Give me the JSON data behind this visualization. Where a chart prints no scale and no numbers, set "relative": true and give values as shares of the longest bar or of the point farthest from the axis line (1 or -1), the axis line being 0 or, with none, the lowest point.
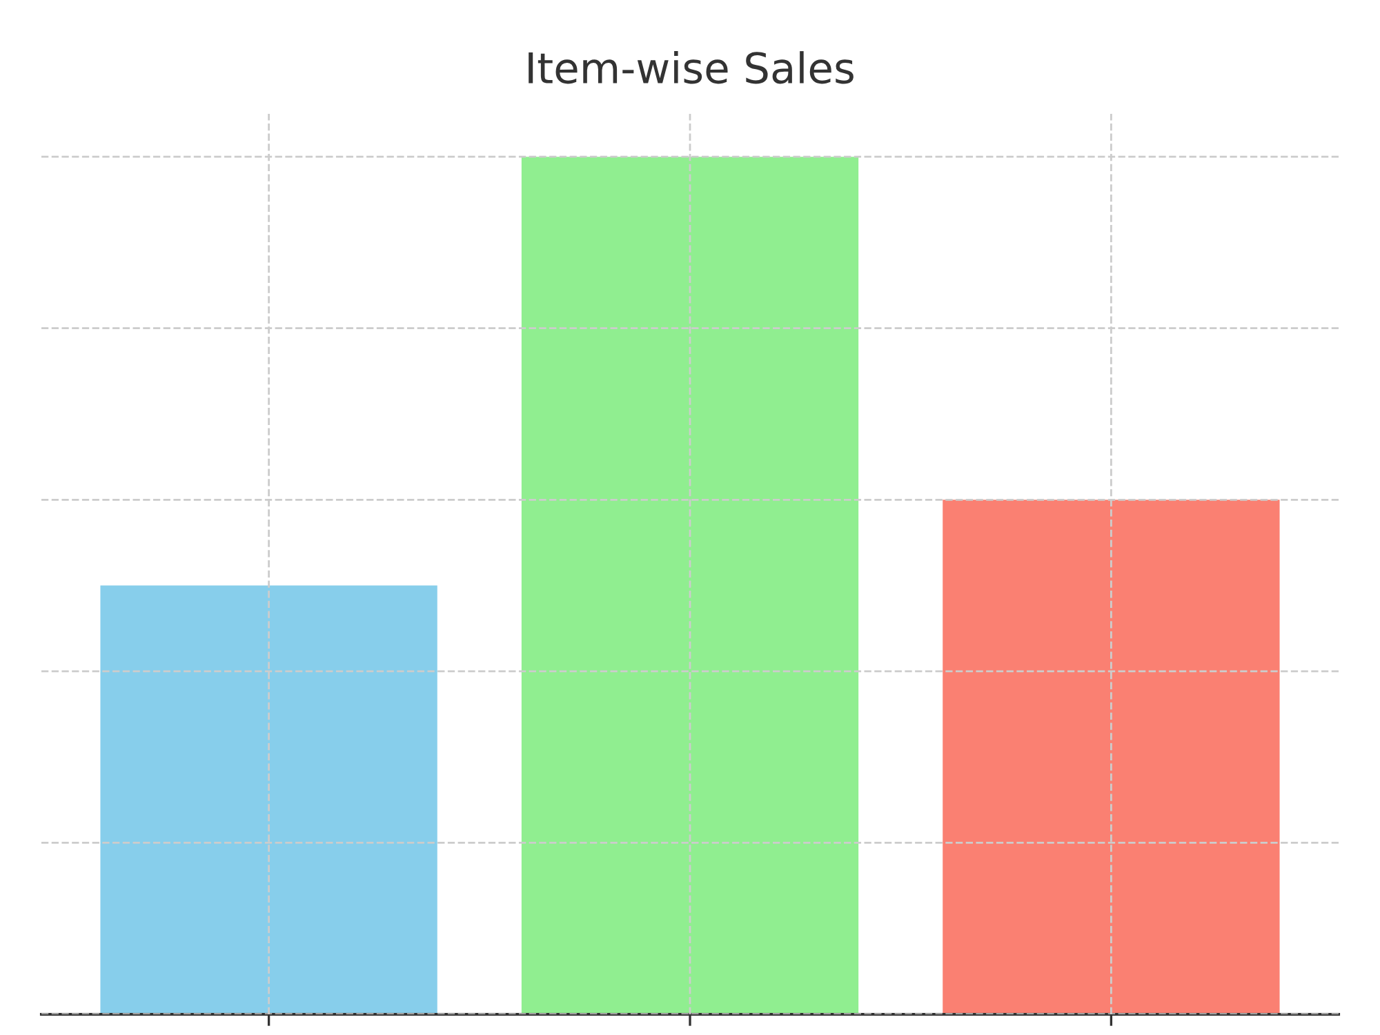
{
  "chart_data": {
    "type": "bar",
    "title": "Item-wise Sales",
    "categories": [
      null,
      null,
      null
    ],
    "values": [
      0.5,
      1.0,
      0.6
    ],
    "colors": [
      "#87ceeb",
      "#90ee90",
      "#fa8072"
    ],
    "relative": true,
    "grid": true
  }
}
